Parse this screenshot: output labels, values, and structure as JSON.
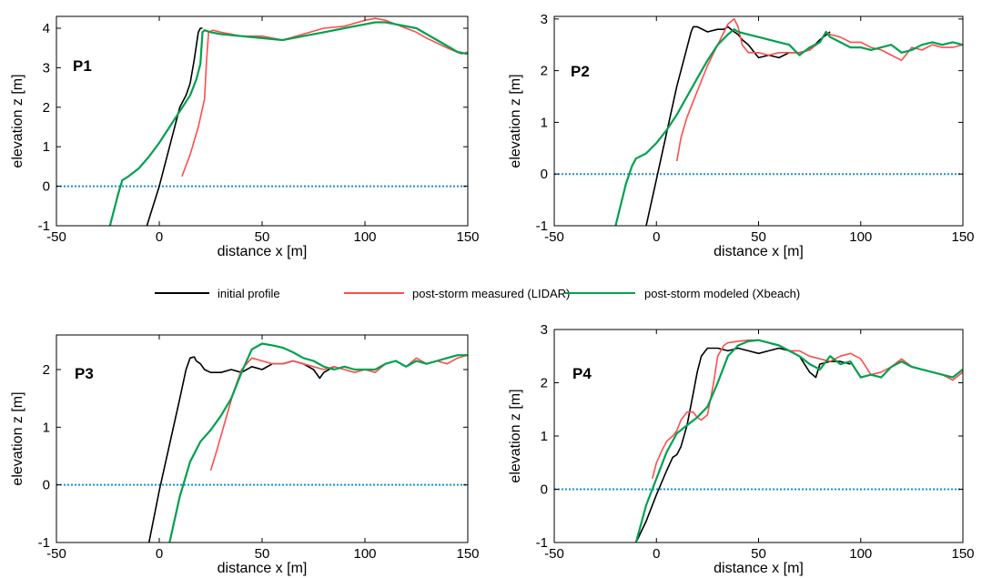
{
  "colors": {
    "initial": "#000000",
    "measured": "#ff4d4d",
    "modeled": "#00a050",
    "waterline": "#1f8fd6"
  },
  "legend": {
    "initial": "initial profile",
    "measured": "post-storm measured (LIDAR)",
    "modeled": "post-storm modeled (Xbeach)"
  },
  "chart_data": [
    {
      "type": "line",
      "panel_label": "P1",
      "xlabel": "distance x [m]",
      "ylabel": "elevation z [m]",
      "xlim": [
        -50,
        150
      ],
      "ylim": [
        -1,
        4.3
      ],
      "xticks": [
        -50,
        0,
        50,
        100,
        150
      ],
      "xtick_labels": [
        "-50",
        "0",
        "50",
        "100",
        "150"
      ],
      "yticks": [
        -1,
        0,
        1,
        2,
        3,
        4
      ],
      "ytick_labels": [
        "-1",
        "0",
        "1",
        "2",
        "3",
        "4"
      ],
      "grid": false,
      "waterline": 0,
      "series": [
        {
          "key": "initial",
          "name": "initial profile",
          "x": [
            -6,
            0,
            5,
            10,
            13,
            15,
            17,
            19,
            20,
            21
          ],
          "y": [
            -1,
            0,
            1,
            2,
            2.3,
            2.6,
            3.2,
            3.9,
            4,
            4
          ]
        },
        {
          "key": "measured",
          "name": "post-storm measured (LIDAR)",
          "x": [
            11,
            15,
            19,
            22,
            23,
            24,
            26,
            30,
            40,
            50,
            60,
            70,
            80,
            90,
            100,
            105,
            110,
            120,
            125,
            130,
            140,
            147,
            150
          ],
          "y": [
            0.25,
            0.8,
            1.5,
            2.2,
            3.2,
            3.9,
            3.95,
            3.9,
            3.8,
            3.8,
            3.7,
            3.85,
            4.0,
            4.05,
            4.2,
            4.25,
            4.2,
            4.0,
            3.9,
            3.75,
            3.5,
            3.35,
            3.4
          ]
        },
        {
          "key": "modeled",
          "name": "post-storm modeled (Xbeach)",
          "x": [
            -24,
            -20,
            -18,
            -15,
            -10,
            -5,
            0,
            5,
            10,
            15,
            18,
            20,
            21,
            22,
            25,
            30,
            40,
            50,
            60,
            70,
            80,
            90,
            100,
            105,
            110,
            115,
            120,
            125,
            130,
            135,
            140,
            145,
            150
          ],
          "y": [
            -1,
            -0.2,
            0.15,
            0.25,
            0.45,
            0.75,
            1.1,
            1.5,
            1.9,
            2.3,
            2.7,
            3.1,
            3.9,
            3.95,
            3.9,
            3.85,
            3.8,
            3.75,
            3.7,
            3.8,
            3.9,
            4.0,
            4.1,
            4.15,
            4.15,
            4.1,
            4.05,
            4.0,
            3.85,
            3.7,
            3.55,
            3.4,
            3.35
          ]
        }
      ]
    },
    {
      "type": "line",
      "panel_label": "P2",
      "xlabel": "distance x [m]",
      "ylabel": "elevation z [m]",
      "xlim": [
        -50,
        150
      ],
      "ylim": [
        -1,
        3.05
      ],
      "xticks": [
        -50,
        0,
        50,
        100,
        150
      ],
      "xtick_labels": [
        "-50",
        "0",
        "50",
        "100",
        "150"
      ],
      "yticks": [
        -1,
        0,
        1,
        2,
        3
      ],
      "ytick_labels": [
        "-1",
        "0",
        "1",
        "2",
        "3"
      ],
      "grid": false,
      "waterline": 0,
      "series": [
        {
          "key": "initial",
          "name": "initial profile",
          "x": [
            -5,
            0,
            5,
            10,
            14,
            17,
            18,
            20,
            25,
            30,
            33,
            35,
            38,
            40,
            42,
            45,
            50,
            55,
            60,
            65,
            70,
            75,
            80,
            85
          ],
          "y": [
            -1,
            -0.1,
            0.8,
            1.7,
            2.3,
            2.75,
            2.85,
            2.85,
            2.75,
            2.8,
            2.8,
            2.85,
            2.75,
            2.7,
            2.6,
            2.5,
            2.25,
            2.3,
            2.25,
            2.35,
            2.35,
            2.4,
            2.6,
            2.75
          ]
        },
        {
          "key": "measured",
          "name": "post-storm measured (LIDAR)",
          "x": [
            10,
            12,
            15,
            20,
            25,
            30,
            35,
            38,
            40,
            42,
            45,
            50,
            55,
            60,
            70,
            75,
            80,
            83,
            85,
            90,
            95,
            100,
            105,
            110,
            115,
            120,
            125,
            130,
            135,
            140,
            145,
            150
          ],
          "y": [
            0.25,
            0.7,
            1.1,
            1.6,
            2.1,
            2.5,
            2.9,
            3.0,
            2.85,
            2.5,
            2.35,
            2.35,
            2.3,
            2.35,
            2.35,
            2.4,
            2.55,
            2.75,
            2.7,
            2.65,
            2.55,
            2.55,
            2.45,
            2.4,
            2.3,
            2.2,
            2.45,
            2.4,
            2.5,
            2.45,
            2.45,
            2.5
          ]
        },
        {
          "key": "modeled",
          "name": "post-storm modeled (Xbeach)",
          "x": [
            -20,
            -15,
            -12,
            -10,
            -5,
            0,
            5,
            10,
            15,
            20,
            25,
            30,
            35,
            38,
            40,
            45,
            50,
            55,
            60,
            65,
            70,
            75,
            80,
            83,
            85,
            90,
            95,
            100,
            105,
            110,
            115,
            120,
            125,
            130,
            135,
            140,
            145,
            150
          ],
          "y": [
            -1,
            -0.2,
            0.15,
            0.3,
            0.4,
            0.6,
            0.85,
            1.15,
            1.5,
            1.85,
            2.2,
            2.5,
            2.7,
            2.8,
            2.75,
            2.7,
            2.65,
            2.6,
            2.55,
            2.5,
            2.3,
            2.45,
            2.55,
            2.75,
            2.65,
            2.55,
            2.45,
            2.45,
            2.4,
            2.45,
            2.5,
            2.35,
            2.4,
            2.5,
            2.55,
            2.5,
            2.55,
            2.5
          ]
        }
      ]
    },
    {
      "type": "line",
      "panel_label": "P3",
      "xlabel": "distance x [m]",
      "ylabel": "elevation z [m]",
      "xlim": [
        -50,
        150
      ],
      "ylim": [
        -1,
        2.6
      ],
      "xticks": [
        -50,
        0,
        50,
        100,
        150
      ],
      "xtick_labels": [
        "-50",
        "0",
        "50",
        "100",
        "150"
      ],
      "yticks": [
        -1,
        0,
        1,
        2
      ],
      "ytick_labels": [
        "-1",
        "0",
        "1",
        "2"
      ],
      "grid": false,
      "waterline": 0,
      "series": [
        {
          "key": "initial",
          "name": "initial profile",
          "x": [
            -5,
            0,
            5,
            10,
            13,
            15,
            17,
            18,
            20,
            22,
            25,
            30,
            35,
            40,
            45,
            50,
            55,
            60,
            65,
            70,
            75,
            78,
            80,
            85
          ],
          "y": [
            -1,
            -0.1,
            0.7,
            1.5,
            2.0,
            2.2,
            2.22,
            2.15,
            2.1,
            2.0,
            1.95,
            1.95,
            2.0,
            1.95,
            2.05,
            2.0,
            2.1,
            2.1,
            2.15,
            2.1,
            2.0,
            1.85,
            1.95,
            2.05
          ]
        },
        {
          "key": "measured",
          "name": "post-storm measured (LIDAR)",
          "x": [
            25,
            28,
            32,
            36,
            40,
            45,
            50,
            55,
            60,
            65,
            70,
            75,
            80,
            85,
            90,
            95,
            100,
            105,
            110,
            115,
            120,
            125,
            130,
            135,
            140,
            145,
            150
          ],
          "y": [
            0.25,
            0.6,
            1.1,
            1.6,
            2.0,
            2.2,
            2.15,
            2.1,
            2.1,
            2.15,
            2.1,
            2.05,
            2.0,
            2.05,
            2.0,
            1.95,
            2.0,
            1.95,
            2.1,
            2.15,
            2.05,
            2.2,
            2.1,
            2.15,
            2.1,
            2.2,
            2.25
          ]
        },
        {
          "key": "modeled",
          "name": "post-storm modeled (Xbeach)",
          "x": [
            5,
            10,
            15,
            20,
            25,
            30,
            35,
            40,
            45,
            50,
            55,
            60,
            65,
            70,
            75,
            80,
            85,
            90,
            95,
            100,
            105,
            110,
            115,
            120,
            125,
            130,
            135,
            140,
            145,
            150
          ],
          "y": [
            -1,
            -0.2,
            0.4,
            0.75,
            0.95,
            1.2,
            1.5,
            1.95,
            2.35,
            2.45,
            2.42,
            2.38,
            2.3,
            2.2,
            2.15,
            2.05,
            2.0,
            2.05,
            2.0,
            2.0,
            2.0,
            2.1,
            2.15,
            2.05,
            2.15,
            2.1,
            2.15,
            2.2,
            2.25,
            2.25
          ]
        }
      ]
    },
    {
      "type": "line",
      "panel_label": "P4",
      "xlabel": "distance x [m]",
      "ylabel": "elevation z [m]",
      "xlim": [
        -50,
        150
      ],
      "ylim": [
        -1,
        3
      ],
      "xticks": [
        -50,
        0,
        50,
        100,
        150
      ],
      "xtick_labels": [
        "-50",
        "0",
        "50",
        "100",
        "150"
      ],
      "yticks": [
        -1,
        0,
        1,
        2,
        3
      ],
      "ytick_labels": [
        "-1",
        "0",
        "1",
        "2",
        "3"
      ],
      "grid": false,
      "waterline": 0,
      "series": [
        {
          "key": "initial",
          "name": "initial profile",
          "x": [
            -10,
            -5,
            0,
            5,
            8,
            10,
            12,
            15,
            18,
            20,
            22,
            25,
            30,
            35,
            40,
            45,
            50,
            55,
            60,
            65,
            70,
            75,
            78,
            80,
            85,
            90,
            95
          ],
          "y": [
            -1,
            -0.6,
            -0.1,
            0.35,
            0.6,
            0.65,
            0.8,
            1.2,
            1.8,
            2.2,
            2.5,
            2.65,
            2.65,
            2.6,
            2.65,
            2.6,
            2.55,
            2.6,
            2.65,
            2.6,
            2.5,
            2.2,
            2.1,
            2.35,
            2.4,
            2.4,
            2.35
          ]
        },
        {
          "key": "measured",
          "name": "post-storm measured (LIDAR)",
          "x": [
            -2,
            0,
            3,
            5,
            8,
            10,
            12,
            15,
            18,
            20,
            22,
            25,
            28,
            30,
            33,
            35,
            40,
            45,
            50,
            55,
            60,
            65,
            70,
            75,
            80,
            85,
            90,
            95,
            100,
            105,
            110,
            115,
            120,
            125,
            130,
            135,
            140,
            145,
            150
          ],
          "y": [
            0.2,
            0.5,
            0.75,
            0.9,
            1.0,
            1.1,
            1.3,
            1.45,
            1.45,
            1.35,
            1.3,
            1.4,
            2.0,
            2.5,
            2.7,
            2.75,
            2.78,
            2.8,
            2.8,
            2.75,
            2.7,
            2.6,
            2.6,
            2.5,
            2.45,
            2.4,
            2.5,
            2.55,
            2.45,
            2.15,
            2.2,
            2.3,
            2.45,
            2.3,
            2.25,
            2.2,
            2.15,
            2.05,
            2.2
          ]
        },
        {
          "key": "modeled",
          "name": "post-storm modeled (Xbeach)",
          "x": [
            -10,
            -5,
            0,
            5,
            10,
            15,
            20,
            25,
            30,
            35,
            40,
            45,
            50,
            55,
            60,
            65,
            70,
            75,
            80,
            85,
            90,
            95,
            100,
            105,
            110,
            115,
            120,
            125,
            130,
            135,
            140,
            145,
            150
          ],
          "y": [
            -1,
            -0.3,
            0.2,
            0.7,
            1.05,
            1.2,
            1.35,
            1.55,
            2.0,
            2.5,
            2.7,
            2.78,
            2.8,
            2.75,
            2.7,
            2.6,
            2.5,
            2.35,
            2.25,
            2.5,
            2.35,
            2.4,
            2.1,
            2.15,
            2.1,
            2.3,
            2.4,
            2.3,
            2.25,
            2.2,
            2.15,
            2.1,
            2.25
          ]
        }
      ]
    }
  ]
}
